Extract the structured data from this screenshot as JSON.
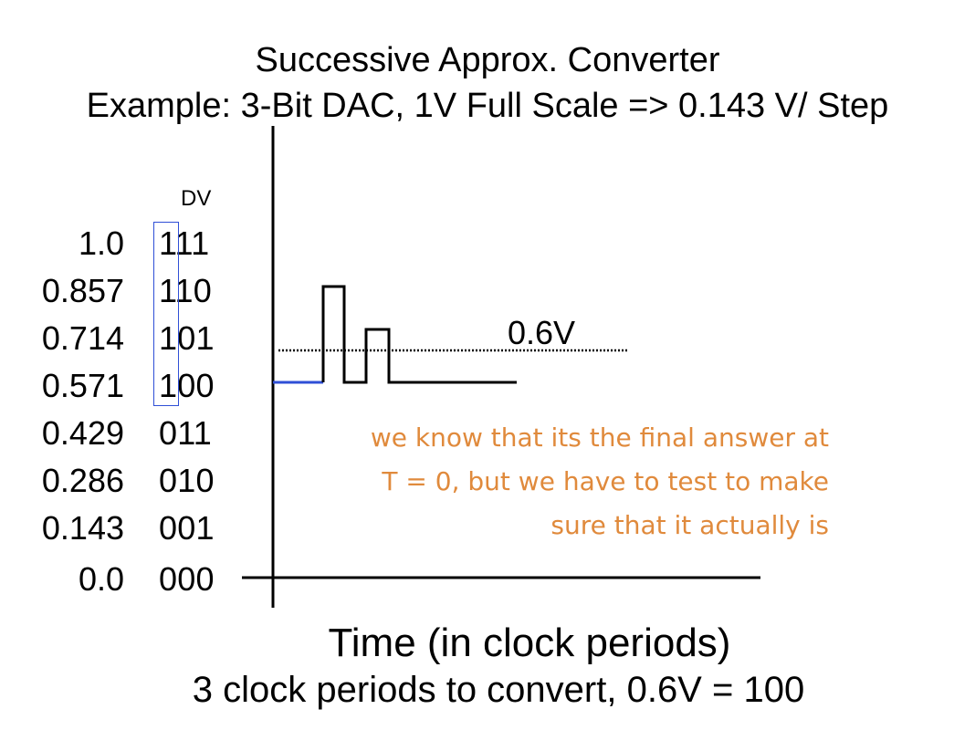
{
  "title": {
    "line1": "Successive Approx. Converter",
    "line2": "Example: 3-Bit DAC, 1V Full Scale => 0.143 V/ Step"
  },
  "table": {
    "dv_heading": "DV",
    "rows": [
      {
        "voltage": "1.0",
        "code": "111"
      },
      {
        "voltage": "0.857",
        "code": "110"
      },
      {
        "voltage": "0.714",
        "code": "101"
      },
      {
        "voltage": "0.571",
        "code": "100"
      },
      {
        "voltage": "0.429",
        "code": "011"
      },
      {
        "voltage": "0.286",
        "code": "010"
      },
      {
        "voltage": "0.143",
        "code": "001"
      },
      {
        "voltage": "0.0",
        "code": "000"
      }
    ],
    "highlight_color": "#2f4fd6"
  },
  "diagram": {
    "threshold_label": "0.6V",
    "annotation_lines": [
      "we know that its the final answer at",
      "T = 0, but we have to test to make",
      "sure that it actually is"
    ],
    "annotation_color": "#e08a3c",
    "initial_segment_color": "#2f4fd6",
    "x_axis_label": "Time (in clock periods)",
    "caption": "3 clock periods to convert, 0.6V = 100"
  }
}
